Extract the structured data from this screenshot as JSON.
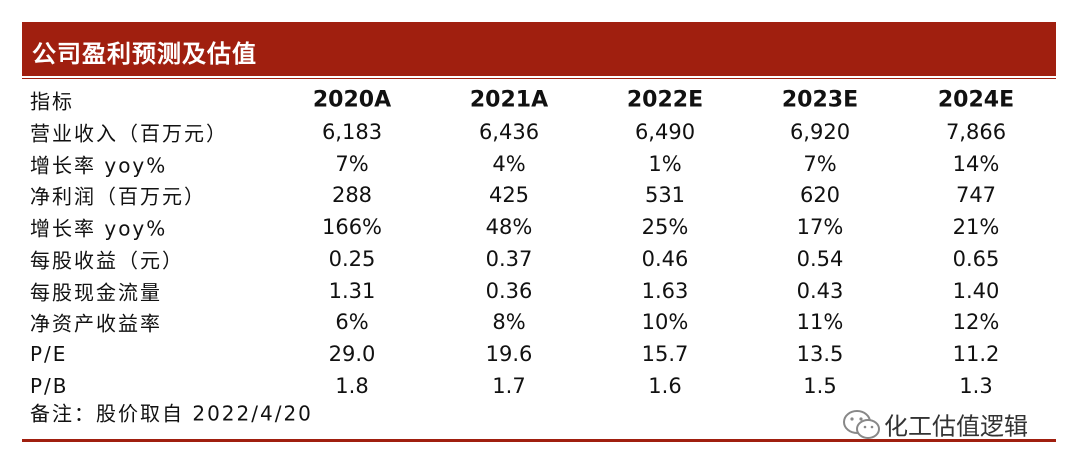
{
  "header": {
    "title": "公司盈利预测及估值"
  },
  "table": {
    "columns": [
      "指标",
      "2020A",
      "2021A",
      "2022E",
      "2023E",
      "2024E"
    ],
    "rows": [
      [
        "营业收入（百万元）",
        "6,183",
        "6,436",
        "6,490",
        "6,920",
        "7,866"
      ],
      [
        "增长率 yoy%",
        "7%",
        "4%",
        "1%",
        "7%",
        "14%"
      ],
      [
        "净利润（百万元）",
        "288",
        "425",
        "531",
        "620",
        "747"
      ],
      [
        "增长率 yoy%",
        "166%",
        "48%",
        "25%",
        "17%",
        "21%"
      ],
      [
        "每股收益（元）",
        "0.25",
        "0.37",
        "0.46",
        "0.54",
        "0.65"
      ],
      [
        "每股现金流量",
        "1.31",
        "0.36",
        "1.63",
        "0.43",
        "1.40"
      ],
      [
        "净资产收益率",
        "6%",
        "8%",
        "10%",
        "11%",
        "12%"
      ],
      [
        "P/E",
        "29.0",
        "19.6",
        "15.7",
        "13.5",
        "11.2"
      ],
      [
        "P/B",
        "1.8",
        "1.7",
        "1.6",
        "1.5",
        "1.3"
      ]
    ]
  },
  "footnote": "备注：股价取自 2022/4/20",
  "watermark": "化工估值逻辑"
}
